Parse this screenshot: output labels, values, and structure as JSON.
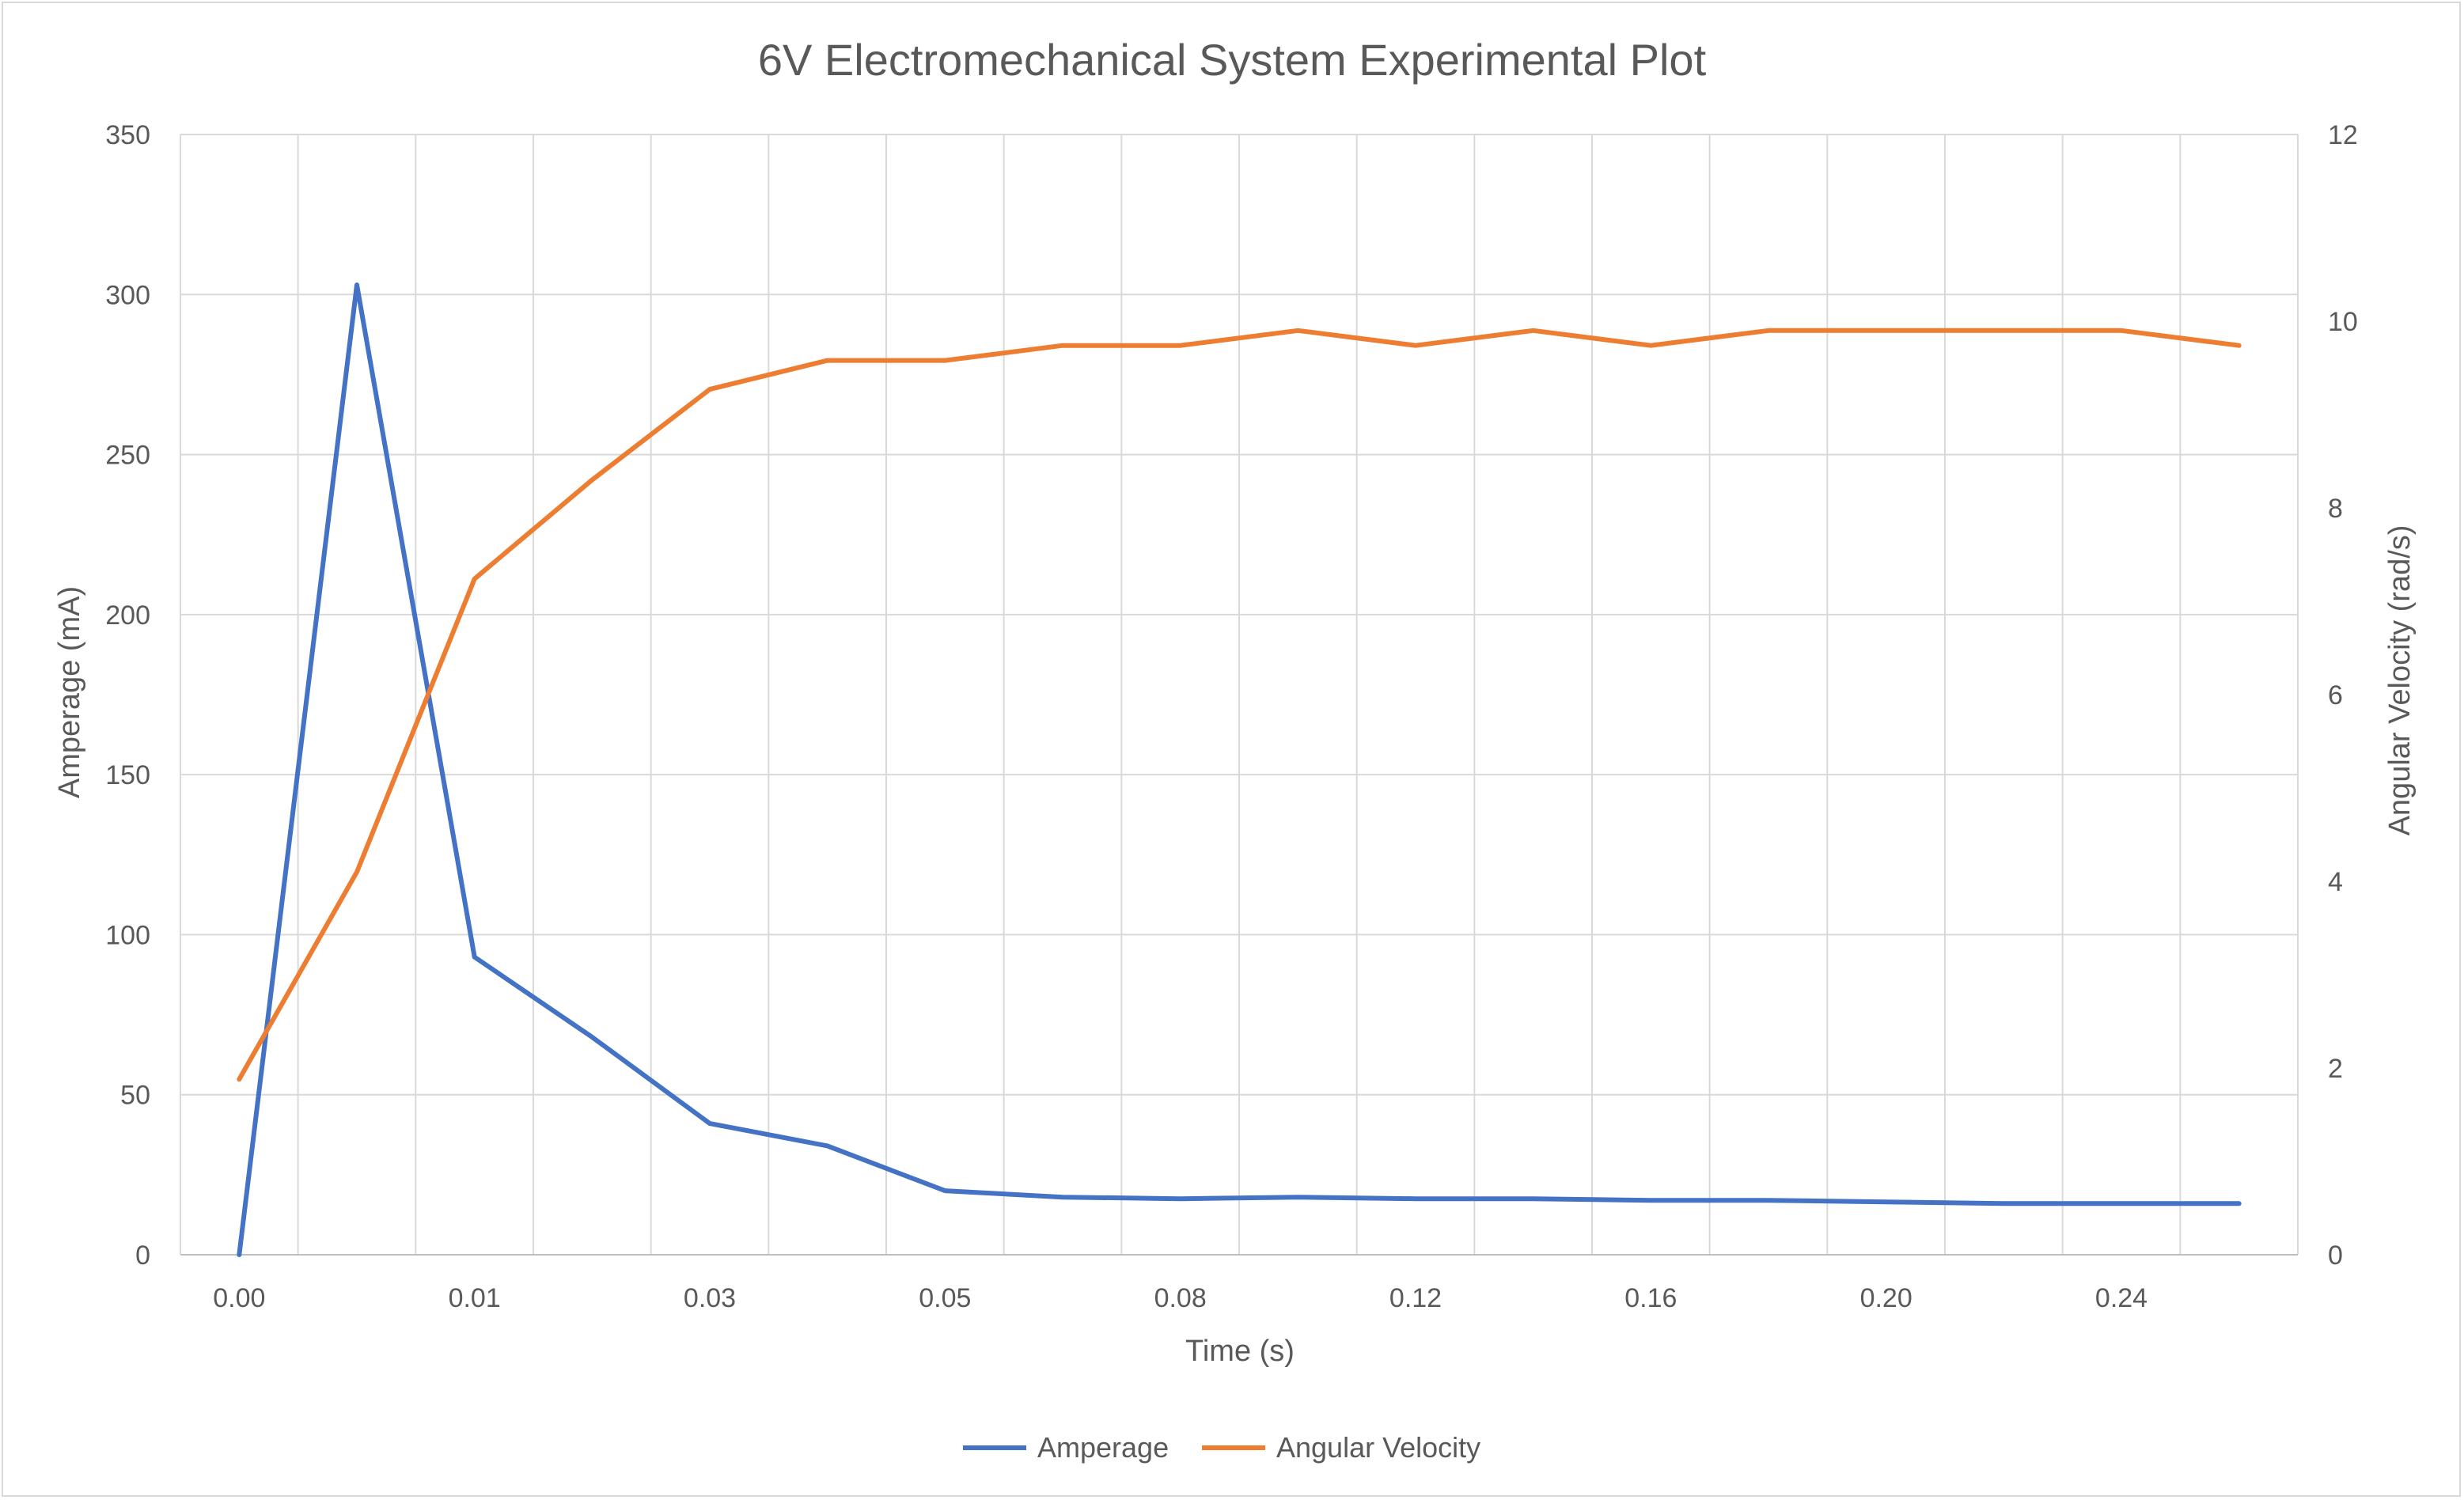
{
  "chart_data": {
    "type": "line",
    "title": "6V Electromechanical System Experimental Plot",
    "xlabel": "Time (s)",
    "ylabel": "Amperage (mA)",
    "y2label": "Angular Velocity (rad/s)",
    "categories": [
      "0.00",
      "",
      "0.01",
      "",
      "0.03",
      "",
      "0.05",
      "",
      "0.08",
      "",
      "0.12",
      "",
      "0.16",
      "",
      "0.20",
      "",
      "0.24",
      ""
    ],
    "x_tick_labels": [
      "0.00",
      "0.01",
      "0.03",
      "0.05",
      "0.08",
      "0.12",
      "0.16",
      "0.20",
      "0.24"
    ],
    "ylim": [
      0,
      350
    ],
    "y_ticks": [
      0,
      50,
      100,
      150,
      200,
      250,
      300,
      350
    ],
    "y2lim": [
      0,
      12
    ],
    "y2_ticks": [
      0,
      2,
      4,
      6,
      8,
      10,
      12
    ],
    "grid": true,
    "legend_position": "bottom",
    "series": [
      {
        "name": "Amperage",
        "axis": "left",
        "color": "#4472C4",
        "values": [
          0,
          303,
          93,
          68,
          41,
          34,
          20,
          18,
          17.5,
          18,
          17.5,
          17.5,
          17,
          17,
          16.5,
          16,
          16,
          16
        ]
      },
      {
        "name": "Angular Velocity",
        "axis": "right",
        "color": "#ED7D31",
        "values": [
          1.88,
          4.1,
          7.24,
          8.3,
          9.27,
          9.58,
          9.58,
          9.74,
          9.74,
          9.9,
          9.74,
          9.9,
          9.74,
          9.9,
          9.9,
          9.9,
          9.9,
          9.74
        ]
      }
    ]
  }
}
